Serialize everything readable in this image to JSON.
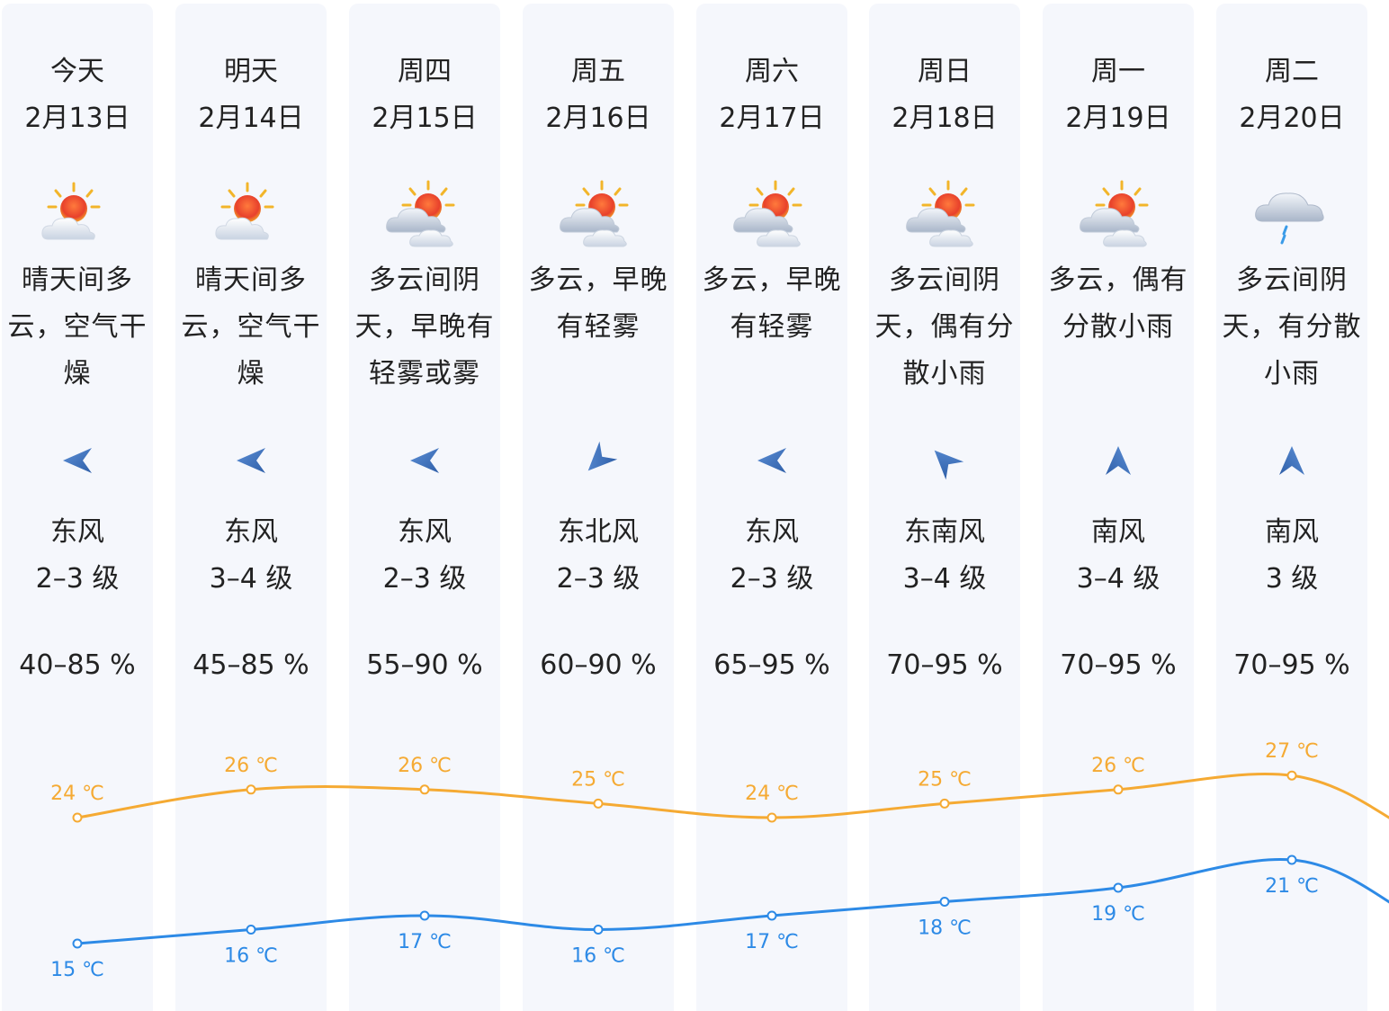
{
  "days": [
    {
      "day": "今天",
      "date": "2月13日",
      "desc_lines": [
        "晴天间多",
        "云，空气干",
        "燥"
      ],
      "icon": "sunny-cloudy-icon",
      "wind_dir": "东风",
      "wind_level": "2–3 级",
      "wind_arrow": "west-arrow-icon",
      "humidity": "40–85 %",
      "high": "24 ℃",
      "low": "15 ℃"
    },
    {
      "day": "明天",
      "date": "2月14日",
      "desc_lines": [
        "晴天间多",
        "云，空气干",
        "燥"
      ],
      "icon": "sunny-cloudy-icon",
      "wind_dir": "东风",
      "wind_level": "3–4 级",
      "wind_arrow": "west-arrow-icon",
      "humidity": "45–85 %",
      "high": "26 ℃",
      "low": "16 ℃"
    },
    {
      "day": "周四",
      "date": "2月15日",
      "desc_lines": [
        "多云间阴",
        "天，早晚有",
        "轻雾或雾"
      ],
      "icon": "partly-cloudy-icon",
      "wind_dir": "东风",
      "wind_level": "2–3 级",
      "wind_arrow": "west-arrow-icon",
      "humidity": "55–90 %",
      "high": "26 ℃",
      "low": "17 ℃"
    },
    {
      "day": "周五",
      "date": "2月16日",
      "desc_lines": [
        "多云，早晚",
        "有轻雾"
      ],
      "icon": "partly-cloudy-icon",
      "wind_dir": "东北风",
      "wind_level": "2–3 级",
      "wind_arrow": "southwest-arrow-icon",
      "humidity": "60–90 %",
      "high": "25 ℃",
      "low": "16 ℃"
    },
    {
      "day": "周六",
      "date": "2月17日",
      "desc_lines": [
        "多云，早晚",
        "有轻雾"
      ],
      "icon": "partly-cloudy-icon",
      "wind_dir": "东风",
      "wind_level": "2–3 级",
      "wind_arrow": "west-arrow-icon",
      "humidity": "65–95 %",
      "high": "24 ℃",
      "low": "17 ℃"
    },
    {
      "day": "周日",
      "date": "2月18日",
      "desc_lines": [
        "多云间阴",
        "天，偶有分",
        "散小雨"
      ],
      "icon": "partly-cloudy-icon",
      "wind_dir": "东南风",
      "wind_level": "3–4 级",
      "wind_arrow": "northwest-arrow-icon",
      "humidity": "70–95 %",
      "high": "25 ℃",
      "low": "18 ℃"
    },
    {
      "day": "周一",
      "date": "2月19日",
      "desc_lines": [
        "多云，偶有",
        "分散小雨"
      ],
      "icon": "partly-cloudy-icon",
      "wind_dir": "南风",
      "wind_level": "3–4 级",
      "wind_arrow": "north-arrow-icon",
      "humidity": "70–95 %",
      "high": "26 ℃",
      "low": "19 ℃"
    },
    {
      "day": "周二",
      "date": "2月20日",
      "desc_lines": [
        "多云间阴",
        "天，有分散",
        "小雨"
      ],
      "icon": "light-rain-icon",
      "wind_dir": "南风",
      "wind_level": "3 级",
      "wind_arrow": "north-arrow-icon",
      "humidity": "70–95 %",
      "high": "27 ℃",
      "low": "21 ℃"
    }
  ],
  "colors": {
    "high_line": "#f5aa33",
    "low_line": "#2d8ae6",
    "column_bg": "#f5f7fc",
    "arrow": "#3f73c4"
  },
  "chart_data": {
    "type": "line",
    "categories": [
      "2月13日",
      "2月14日",
      "2月15日",
      "2月16日",
      "2月17日",
      "2月18日",
      "2月19日",
      "2月20日"
    ],
    "series": [
      {
        "values": [
          24,
          26,
          26,
          25,
          24,
          25,
          26,
          27
        ]
      },
      {
        "values": [
          15,
          16,
          17,
          16,
          17,
          18,
          19,
          21
        ]
      }
    ]
  }
}
